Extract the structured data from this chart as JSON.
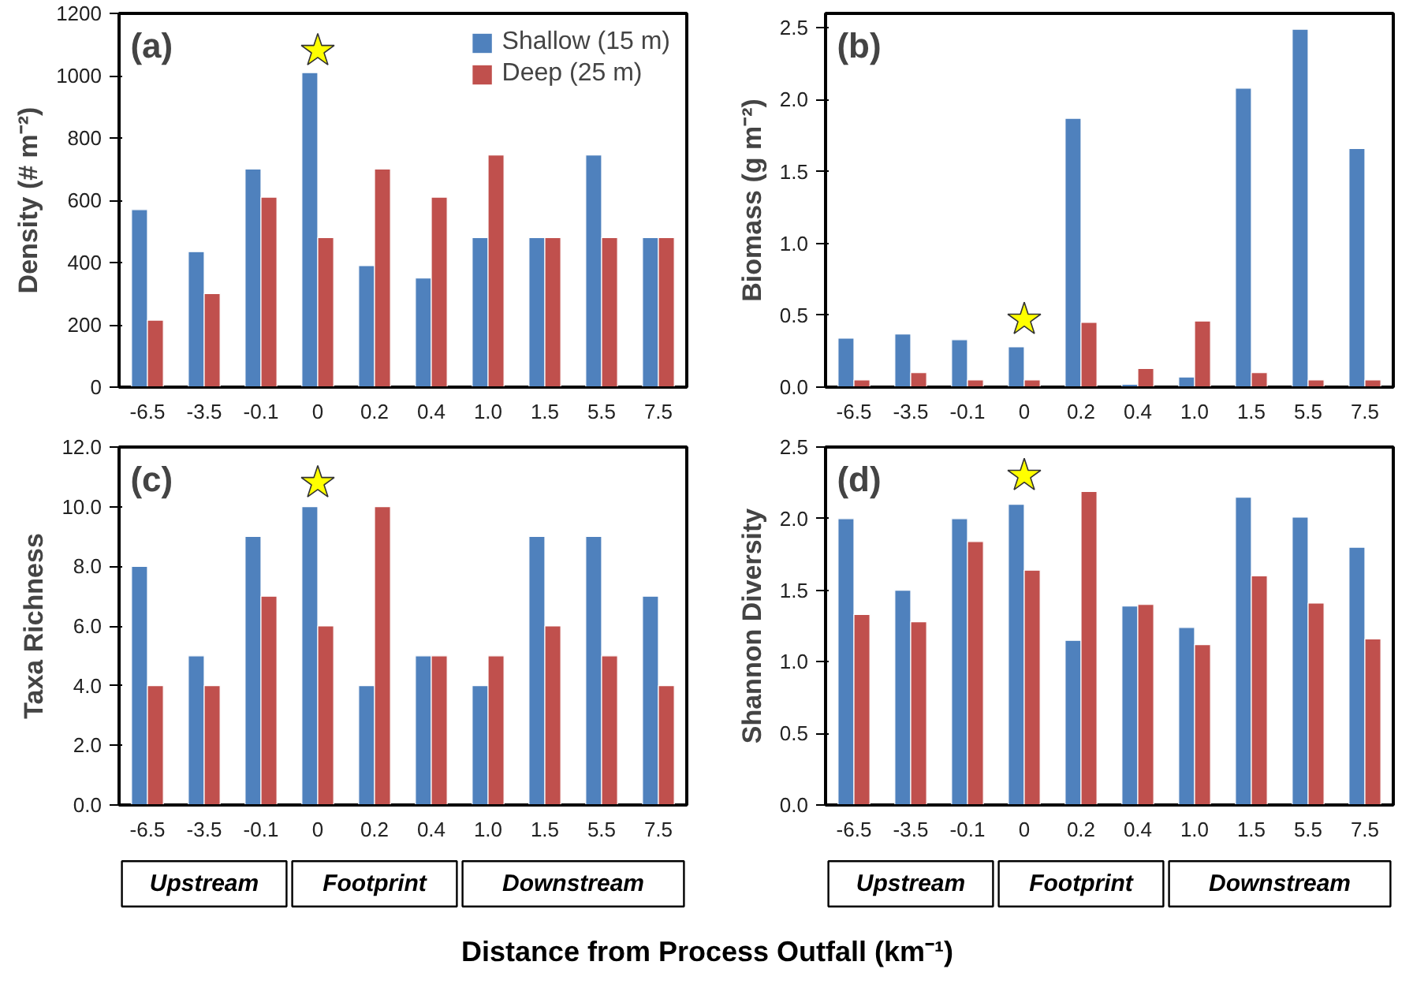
{
  "chart_data": [
    {
      "type": "bar",
      "ylabel": "Density (# m⁻²)",
      "annotations": [
        "(a)"
      ],
      "legend": "top right",
      "grid": false,
      "categories": [
        "-6.5",
        "-3.5",
        "-0.1",
        "0",
        "0.2",
        "0.4",
        "1.0",
        "1.5",
        "5.5",
        "7.5"
      ],
      "ylim": [
        0,
        1200
      ],
      "yticks": [
        0,
        200,
        400,
        600,
        800,
        1000,
        1200
      ],
      "series": [
        {
          "name": "Shallow (15 m)",
          "color": "#4f81bd",
          "values": [
            570,
            435,
            700,
            1010,
            390,
            350,
            480,
            480,
            745,
            480
          ]
        },
        {
          "name": "Deep (25 m)",
          "color": "#c0504d",
          "values": [
            215,
            300,
            610,
            480,
            700,
            610,
            745,
            480,
            480,
            480
          ]
        },
        {
          "type": "scatter",
          "marker": "star",
          "color": "#ffff00",
          "x": [
            "0"
          ],
          "values": [
            1080
          ]
        }
      ]
    },
    {
      "type": "bar",
      "ylabel": "Biomass (g m⁻²)",
      "annotations": [
        "(b)"
      ],
      "legend": false,
      "grid": false,
      "categories": [
        "-6.5",
        "-3.5",
        "-0.1",
        "0",
        "0.2",
        "0.4",
        "1.0",
        "1.5",
        "5.5",
        "7.5"
      ],
      "ylim": [
        0,
        2.6
      ],
      "yticks": [
        {
          "value": 0,
          "label": "0.0"
        },
        0.5,
        {
          "value": 1,
          "label": "1.0"
        },
        1.5,
        {
          "value": 2,
          "label": "2.0"
        },
        2.5
      ],
      "series": [
        {
          "color": "#4f81bd",
          "values": [
            0.34,
            0.37,
            0.33,
            0.28,
            1.87,
            0.02,
            0.07,
            2.08,
            2.49,
            1.66
          ]
        },
        {
          "color": "#c0504d",
          "values": [
            0.05,
            0.1,
            0.05,
            0.05,
            0.45,
            0.13,
            0.46,
            0.1,
            0.05,
            0.05
          ]
        },
        {
          "type": "scatter",
          "marker": "star",
          "color": "#ffff00",
          "x": [
            "0"
          ],
          "values": [
            0.47
          ]
        }
      ]
    },
    {
      "type": "bar",
      "ylabel": "Taxa Richness",
      "xlabel": "Distance from Process Outfall (km⁻¹)",
      "annotations": [
        "(c)",
        "Upstream",
        "Footprint",
        "Downstream"
      ],
      "legend": false,
      "grid": false,
      "categories": [
        "-6.5",
        "-3.5",
        "-0.1",
        "0",
        "0.2",
        "0.4",
        "1.0",
        "1.5",
        "5.5",
        "7.5"
      ],
      "ylim": [
        0,
        12
      ],
      "yticks": [
        {
          "value": 0,
          "label": "0.0"
        },
        {
          "value": 2,
          "label": "2.0"
        },
        {
          "value": 4,
          "label": "4.0"
        },
        {
          "value": 6,
          "label": "6.0"
        },
        {
          "value": 8,
          "label": "8.0"
        },
        {
          "value": 10,
          "label": "10.0"
        },
        {
          "value": 12,
          "label": "12.0"
        }
      ],
      "series": [
        {
          "color": "#4f81bd",
          "values": [
            8,
            5,
            9,
            10,
            4,
            5,
            4,
            9,
            9,
            7
          ]
        },
        {
          "color": "#c0504d",
          "values": [
            4,
            4,
            7,
            6,
            10,
            5,
            5,
            6,
            5,
            4
          ]
        },
        {
          "type": "scatter",
          "marker": "star",
          "color": "#ffff00",
          "x": [
            "0"
          ],
          "values": [
            10.8
          ]
        }
      ]
    },
    {
      "type": "bar",
      "ylabel": "Shannon Diversity",
      "annotations": [
        "(d)",
        "Upstream",
        "Footprint",
        "Downstream"
      ],
      "legend": false,
      "grid": false,
      "categories": [
        "-6.5",
        "-3.5",
        "-0.1",
        "0",
        "0.2",
        "0.4",
        "1.0",
        "1.5",
        "5.5",
        "7.5"
      ],
      "ylim": [
        0,
        2.5
      ],
      "yticks": [
        {
          "value": 0,
          "label": "0.0"
        },
        0.5,
        {
          "value": 1,
          "label": "1.0"
        },
        1.5,
        {
          "value": 2,
          "label": "2.0"
        },
        2.5
      ],
      "series": [
        {
          "color": "#4f81bd",
          "values": [
            2.0,
            1.5,
            2.0,
            2.1,
            1.15,
            1.39,
            1.24,
            2.15,
            2.01,
            1.8
          ]
        },
        {
          "color": "#c0504d",
          "values": [
            1.33,
            1.28,
            1.84,
            1.64,
            2.19,
            1.4,
            1.12,
            1.6,
            1.41,
            1.16
          ]
        },
        {
          "type": "scatter",
          "marker": "star",
          "color": "#ffff00",
          "x": [
            "0"
          ],
          "values": [
            2.3
          ]
        }
      ]
    }
  ]
}
